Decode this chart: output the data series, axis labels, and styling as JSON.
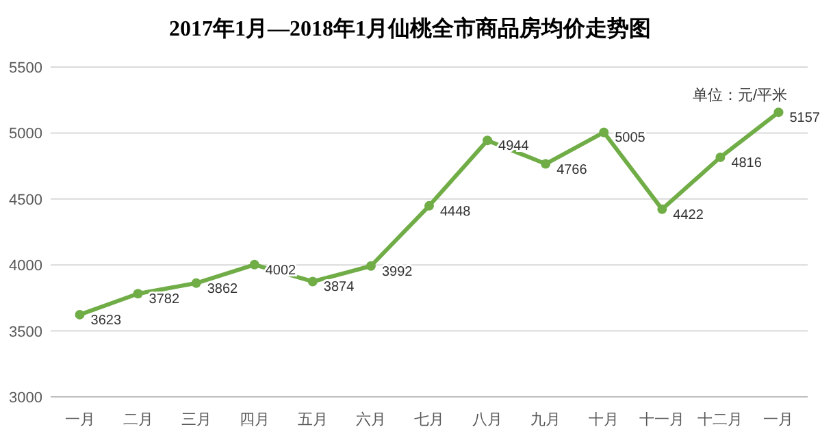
{
  "chart_data": {
    "type": "line",
    "title": "2017年1月—2018年1月仙桃全市商品房均价走势图",
    "categories": [
      "一月",
      "二月",
      "三月",
      "四月",
      "五月",
      "六月",
      "七月",
      "八月",
      "九月",
      "十月",
      "十一月",
      "十二月",
      "一月"
    ],
    "values": [
      3623,
      3782,
      3862,
      4002,
      3874,
      3992,
      4448,
      4944,
      4766,
      5005,
      4422,
      4816,
      5157
    ],
    "color": "#70ad47",
    "marker": "circle",
    "data_labels": true,
    "ylim": [
      3000,
      5500
    ],
    "yticks": [
      3000,
      3500,
      4000,
      4500,
      5000,
      5500
    ],
    "grid": "y",
    "annotations": [
      "单位：元/平米"
    ]
  }
}
